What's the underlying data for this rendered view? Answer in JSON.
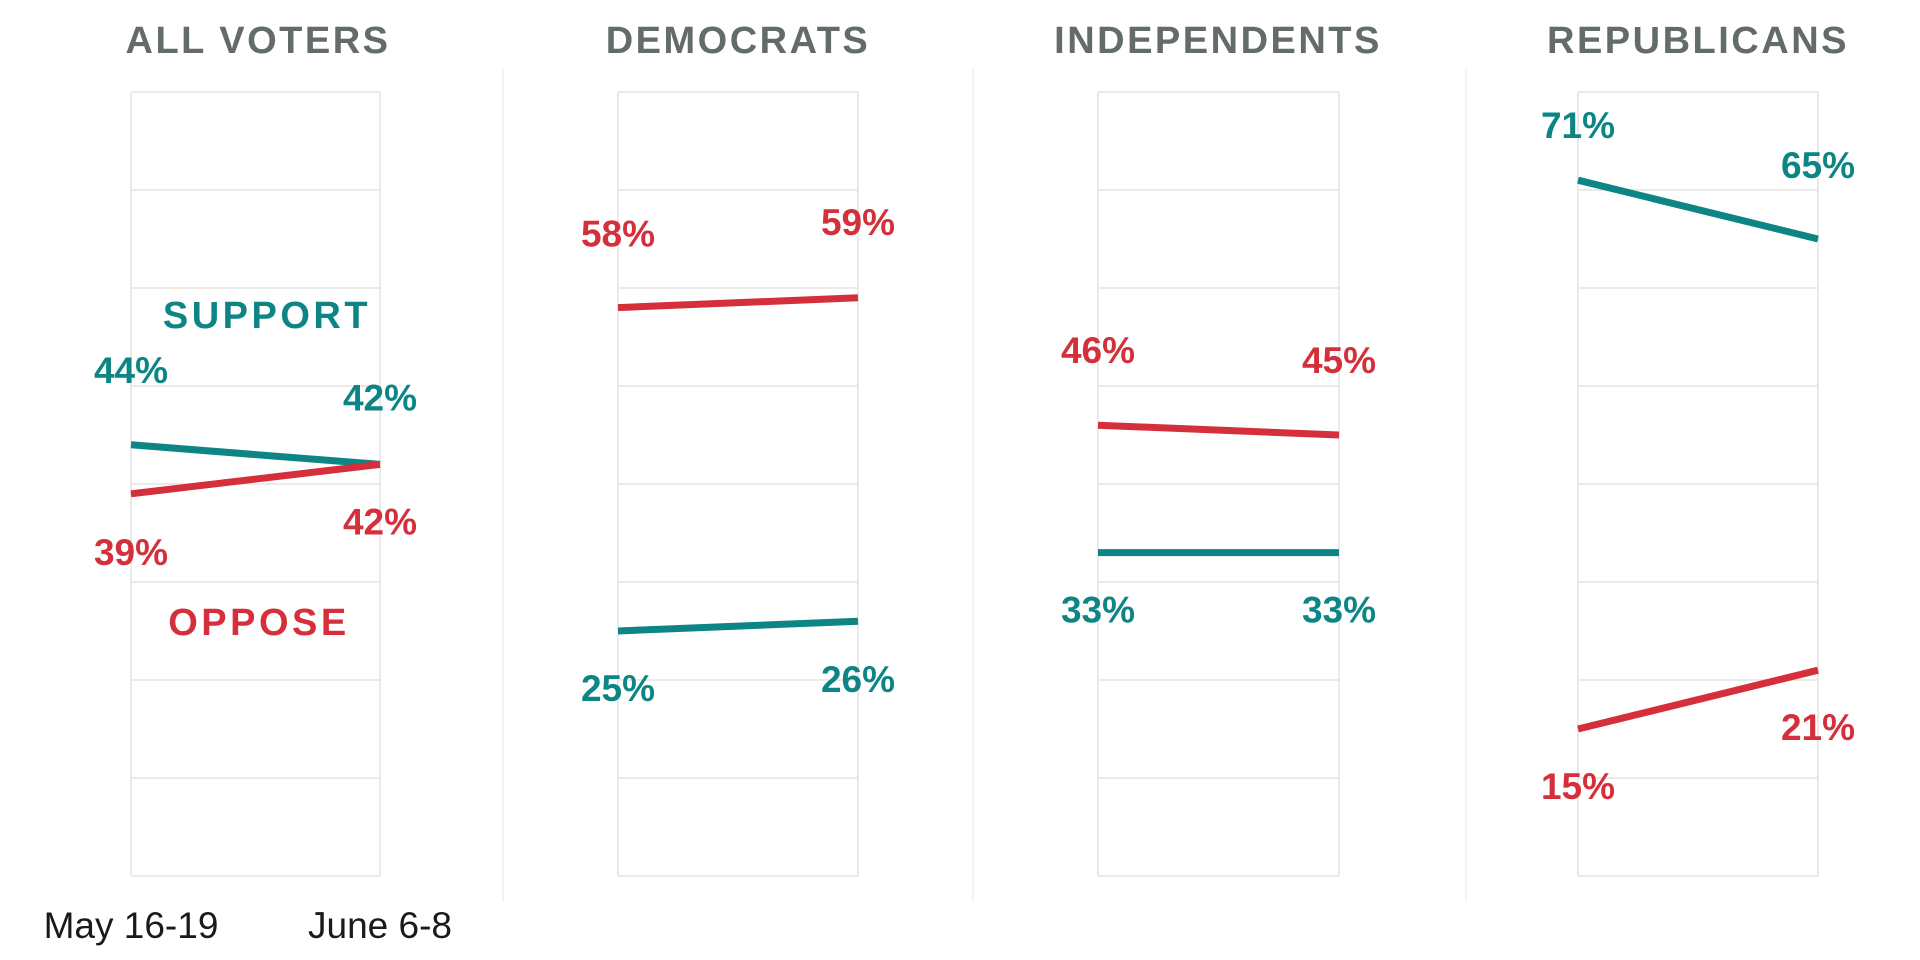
{
  "colors": {
    "support": "#0d8585",
    "oppose": "#d42f3a",
    "title": "#636b6b"
  },
  "chart_data": {
    "type": "line",
    "x": [
      "May 16-19",
      "June 6-8"
    ],
    "ylim": [
      0,
      80
    ],
    "grid": true,
    "panels": [
      {
        "title": "ALL VOTERS",
        "series": [
          {
            "name": "SUPPORT",
            "color_key": "support",
            "values": [
              44,
              42
            ],
            "labels": [
              "44%",
              "42%"
            ]
          },
          {
            "name": "OPPOSE",
            "color_key": "oppose",
            "values": [
              39,
              42
            ],
            "labels": [
              "39%",
              "42%"
            ]
          }
        ]
      },
      {
        "title": "DEMOCRATS",
        "series": [
          {
            "color_key": "support",
            "values": [
              25,
              26
            ],
            "labels": [
              "25%",
              "26%"
            ]
          },
          {
            "color_key": "oppose",
            "values": [
              58,
              59
            ],
            "labels": [
              "58%",
              "59%"
            ]
          }
        ]
      },
      {
        "title": "INDEPENDENTS",
        "series": [
          {
            "color_key": "support",
            "values": [
              33,
              33
            ],
            "labels": [
              "33%",
              "33%"
            ]
          },
          {
            "color_key": "oppose",
            "values": [
              46,
              45
            ],
            "labels": [
              "46%",
              "45%"
            ]
          }
        ]
      },
      {
        "title": "REPUBLICANS",
        "series": [
          {
            "color_key": "support",
            "values": [
              71,
              65
            ],
            "labels": [
              "71%",
              "65%"
            ]
          },
          {
            "color_key": "oppose",
            "values": [
              15,
              21
            ],
            "labels": [
              "15%",
              "21%"
            ]
          }
        ]
      }
    ]
  }
}
